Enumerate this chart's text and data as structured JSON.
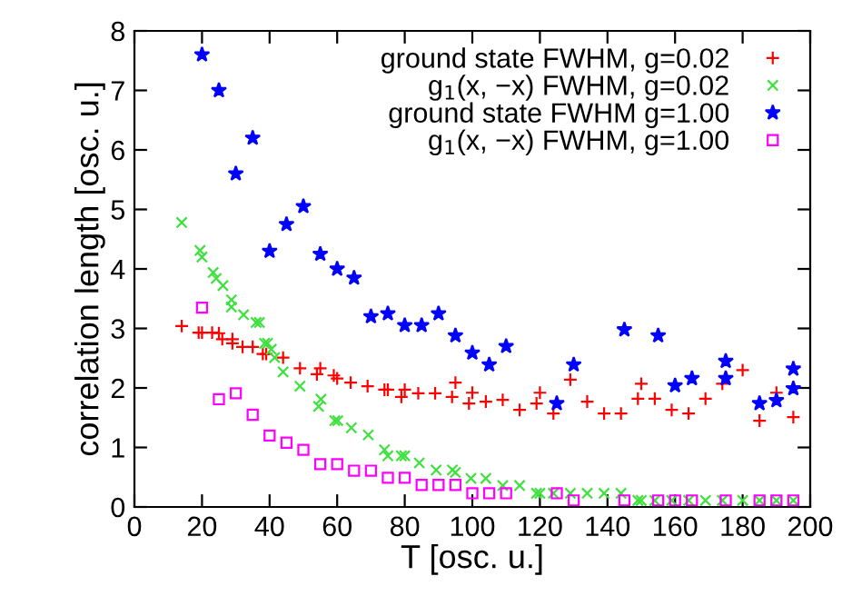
{
  "chart_data": {
    "type": "scatter",
    "xlabel": "T [osc. u.]",
    "ylabel": "correlation length [osc. u.]",
    "xlim": [
      0,
      200
    ],
    "ylim": [
      0,
      8
    ],
    "xticks": [
      0,
      20,
      40,
      60,
      80,
      100,
      120,
      140,
      160,
      180,
      200
    ],
    "yticks": [
      0,
      1,
      2,
      3,
      4,
      5,
      6,
      7,
      8
    ],
    "grid": false,
    "legend": "top right",
    "series": [
      {
        "name": "ground state FWHM, g=0.02",
        "color": "#ff0000",
        "marker": "plus",
        "x": [
          14,
          19,
          20,
          23,
          25,
          26,
          29,
          29,
          32,
          34,
          35,
          38,
          39,
          40.5,
          44,
          49,
          54,
          55,
          59,
          60,
          64,
          69,
          74,
          75,
          79,
          80,
          84,
          89,
          94,
          95,
          99,
          100,
          104,
          109,
          114,
          119,
          120,
          124,
          129,
          134,
          139,
          144,
          149,
          150,
          154,
          159,
          164,
          169,
          174,
          180,
          185,
          190,
          195
        ],
        "values": [
          3.04,
          2.93,
          2.93,
          2.93,
          2.92,
          2.82,
          2.82,
          2.75,
          2.69,
          null,
          2.69,
          2.57,
          2.57,
          null,
          2.51,
          2.33,
          2.23,
          2.33,
          2.21,
          2.16,
          2.09,
          2.03,
          1.97,
          1.97,
          1.85,
          1.97,
          1.91,
          1.91,
          1.85,
          2.09,
          1.74,
          1.92,
          1.77,
          1.8,
          1.63,
          1.74,
          1.92,
          1.57,
          2.14,
          1.77,
          1.57,
          1.57,
          1.82,
          2.07,
          1.82,
          1.63,
          1.57,
          1.82,
          2.07,
          2.3,
          1.45,
          1.92,
          1.51
        ]
      },
      {
        "name": "g$_{1}$(x, −x) FWHM, g=0.02",
        "color": "#40e040",
        "marker": "cross",
        "x": [
          14,
          19.4,
          20,
          23.3,
          24.2,
          26.2,
          28.7,
          28.7,
          32.3,
          36,
          37,
          38.5,
          39.4,
          40.5,
          41.5,
          44,
          49,
          54.5,
          55.2,
          59.3,
          60.2,
          64.2,
          69.2,
          74,
          75,
          79,
          80,
          84.3,
          89.3,
          94.1,
          95,
          99.6,
          104,
          109,
          114,
          119,
          120,
          124,
          129,
          134,
          139,
          144,
          149,
          150,
          154,
          159,
          164,
          169,
          174,
          180,
          185,
          190,
          195
        ],
        "values": [
          4.78,
          4.31,
          4.2,
          3.94,
          3.84,
          3.72,
          3.48,
          3.36,
          3.23,
          3.1,
          3.1,
          2.75,
          2.75,
          2.65,
          2.51,
          2.27,
          2.03,
          1.69,
          1.81,
          1.45,
          1.45,
          1.33,
          1.21,
          0.96,
          0.86,
          0.86,
          0.86,
          0.74,
          0.62,
          0.62,
          0.58,
          0.48,
          0.48,
          0.36,
          0.36,
          0.23,
          0.23,
          0.23,
          0.23,
          0.23,
          0.23,
          0.23,
          0.11,
          0.11,
          0.11,
          0.11,
          0.11,
          0.11,
          0.11,
          0.11,
          0.11,
          0.11,
          0.11
        ]
      },
      {
        "name": "ground state FWHM g=1.00",
        "color": "#0000ff",
        "marker": "star",
        "x": [
          20,
          25,
          30,
          35,
          40,
          45,
          50,
          55,
          60,
          65,
          70,
          75,
          80,
          85,
          90,
          95,
          100,
          105,
          110,
          125,
          130,
          145,
          155,
          160,
          165,
          175,
          175,
          185,
          190,
          195,
          195
        ],
        "values": [
          7.6,
          7.0,
          5.6,
          6.2,
          4.3,
          4.75,
          5.05,
          4.25,
          4.0,
          3.85,
          3.2,
          3.25,
          3.05,
          3.05,
          3.25,
          2.88,
          2.59,
          2.39,
          2.7,
          1.74,
          2.39,
          2.98,
          2.88,
          2.04,
          2.16,
          2.45,
          2.16,
          1.74,
          1.79,
          2.32,
          1.99
        ]
      },
      {
        "name": "g$_{1}$(x, −x) FWHM, g=1.00",
        "color": "#ff00ff",
        "marker": "square",
        "x": [
          20,
          25,
          30,
          35,
          40,
          45,
          50,
          55,
          60,
          65,
          70,
          75,
          80,
          85,
          90,
          95,
          100,
          105,
          110,
          125,
          130,
          145,
          155,
          160,
          165,
          175,
          185,
          190,
          195
        ],
        "values": [
          3.35,
          1.81,
          1.91,
          1.55,
          1.2,
          1.08,
          0.96,
          0.72,
          0.72,
          0.61,
          0.61,
          0.49,
          0.49,
          0.37,
          0.37,
          0.37,
          0.23,
          0.23,
          0.23,
          0.23,
          0.11,
          0.11,
          0.11,
          0.11,
          0.11,
          0.11,
          0.11,
          0.11,
          0.11
        ]
      }
    ]
  }
}
